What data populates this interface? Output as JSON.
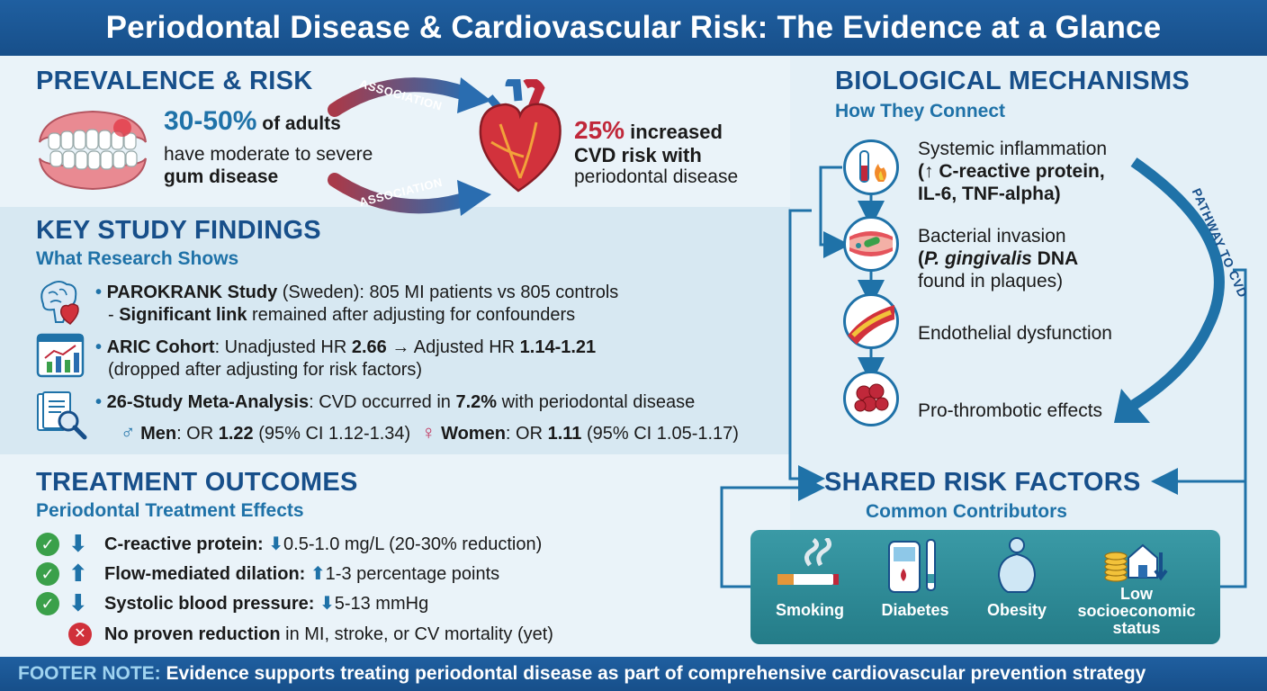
{
  "header": {
    "title": "Periodontal Disease & Cardiovascular Risk: The Evidence at a Glance"
  },
  "prevalence": {
    "heading": "PREVALENCE & RISK",
    "stat1_pct": "30-50%",
    "stat1_suffix": "of adults",
    "stat1_line2": "have moderate to severe",
    "stat1_line3": "gum disease",
    "assoc_top": "ASSOCIATION",
    "assoc_bottom": "ASSOCIATION",
    "stat2_pct": "25%",
    "stat2_suffix": "increased",
    "stat2_line2": "CVD risk with",
    "stat2_line3": "periodontal disease"
  },
  "key_findings": {
    "heading": "KEY STUDY FINDINGS",
    "subheading": "What Research Shows",
    "parokrank": {
      "name": "PAROKRANK Study",
      "rest1": " (Sweden): 805 MI patients vs 805 controls",
      "dash": "- ",
      "link": "Significant link",
      "rest2": " remained after adjusting for confounders"
    },
    "aric": {
      "name": "ARIC Cohort",
      "p1": ": Unadjusted HR ",
      "v1": "2.66",
      "p2": " → Adjusted HR ",
      "v2": "1.14-1.21",
      "line2": "(dropped after adjusting for risk factors)"
    },
    "meta": {
      "name": "26-Study Meta-Analysis",
      "p1": ": CVD occurred in ",
      "v1": "7.2%",
      "p2": " with periodontal disease"
    },
    "men": {
      "label": "Men",
      "p1": ": OR ",
      "v": "1.22",
      "ci": " (95% CI 1.12-1.34)"
    },
    "women": {
      "label": "Women",
      "p1": ": OR ",
      "v": "1.11",
      "ci": " (95% CI 1.05-1.17)"
    }
  },
  "treatment": {
    "heading": "TREATMENT OUTCOMES",
    "subheading": "Periodontal Treatment Effects",
    "items": [
      {
        "label": "C-reactive protein:",
        "value": "0.5-1.0 mg/L (20-30% reduction)",
        "direction": "down"
      },
      {
        "label": "Flow-mediated dilation:",
        "value": "1-3 percentage points",
        "direction": "up"
      },
      {
        "label": "Systolic blood pressure:",
        "value": "5-13 mmHg",
        "direction": "down"
      }
    ],
    "negative_bold": "No proven reduction",
    "negative_rest": " in MI, stroke, or CV mortality (yet)"
  },
  "mechanisms": {
    "heading": "BIOLOGICAL MECHANISMS",
    "subheading": "How They Connect",
    "pathway_label": "PATHWAY TO CVD",
    "m1_l1": "Systemic inflammation",
    "m1_l2": "(↑ C-reactive protein,",
    "m1_l3": "IL-6, TNF-alpha)",
    "m2_l1": "Bacterial invasion",
    "m2_l2a": "(",
    "m2_l2b": "P. gingivalis",
    "m2_l2c": " DNA",
    "m2_l3": "found in plaques)",
    "m3": "Endothelial dysfunction",
    "m4": "Pro-thrombotic effects"
  },
  "shared": {
    "heading": "SHARED RISK FACTORS",
    "subheading": "Common Contributors",
    "factors": [
      "Smoking",
      "Diabetes",
      "Obesity"
    ],
    "ses_l1": "Low",
    "ses_l2": "socioeconomic",
    "ses_l3": "status"
  },
  "footer": {
    "label": "FOOTER NOTE:",
    "text": " Evidence supports treating periodontal disease as part of comprehensive cardiovascular prevention strategy"
  },
  "colors": {
    "primary": "#174f8a",
    "accent": "#1f72a8",
    "alert_red": "#c0283a",
    "teal": "#2b8a96",
    "check_green": "#3aa04a"
  }
}
